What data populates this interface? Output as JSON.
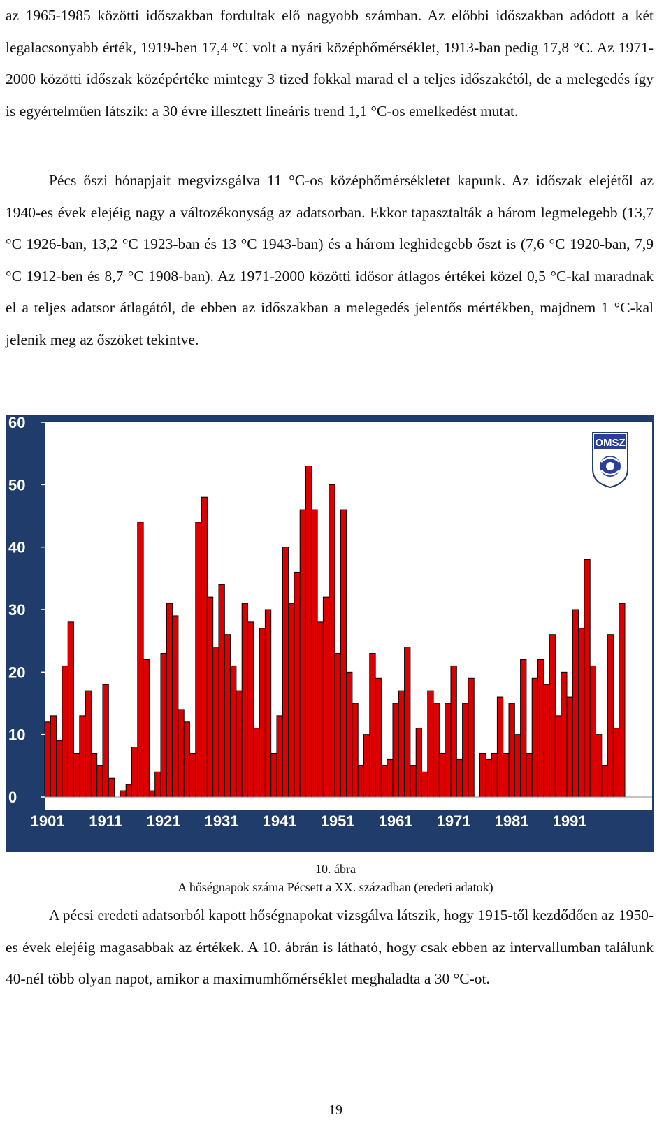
{
  "paragraphs": {
    "p1": "az 1965-1985 közötti időszakban fordultak elő nagyobb számban. Az előbbi időszakban adódott a két legalacsonyabb érték, 1919-ben 17,4 °C volt a nyári középhőmérséklet, 1913-ban pedig 17,8 °C. Az 1971-2000 közötti időszak középértéke mintegy 3 tized fokkal marad el a teljes időszakétól, de a melegedés így is egyértelműen látszik: a 30 évre illesztett lineáris trend 1,1 °C-os emelkedést mutat.",
    "p2": "Pécs őszi hónapjait megvizsgálva 11 °C-os középhőmérsékletet kapunk. Az időszak elejétől az 1940-es évek elejéig nagy a változékonyság az adatsorban. Ekkor tapasztalták a három legmelegebb (13,7 °C 1926-ban, 13,2 °C 1923-ban és 13 °C 1943-ban) és a három leghidegebb őszt is (7,6 °C 1920-ban, 7,9 °C 1912-ben és 8,7 °C 1908-ban). Az 1971-2000 közötti idősor átlagos értékei közel 0,5 °C-kal maradnak el a teljes adatsor átlagától, de ebben az időszakban a melegedés jelentős mértékben, majdnem 1 °C-kal jelenik meg az őszöket tekintve.",
    "p3": "A pécsi eredeti adatsorból kapott hőségnapokat vizsgálva látszik, hogy 1915-től kezdődően az 1950-es évek elejéig magasabbak az értékek. A 10. ábrán is látható, hogy csak ebben az intervallumban találunk 40-nél több olyan napot, amikor a maximumhőmérséklet meghaladta a 30 °C-ot."
  },
  "logo_text": "OMSZ",
  "caption": {
    "number": "10. ábra",
    "title": "A hőségnapok száma Pécsett a XX. században (eredeti adatok)"
  },
  "page_number": "19",
  "colors": {
    "background": "#1f3c6b",
    "plot_area": "#ffffff",
    "bar_fill": "#dd0000",
    "bar_stroke": "#000000"
  },
  "chart_data": {
    "type": "bar",
    "start_year": 1901,
    "end_year": 2000,
    "ylim": [
      0,
      60
    ],
    "y_ticks": [
      "0",
      "10",
      "20",
      "30",
      "40",
      "50",
      "60"
    ],
    "x_tick_labels": [
      "1901",
      "1911",
      "1921",
      "1931",
      "1941",
      "1951",
      "1961",
      "1971",
      "1981",
      "1991"
    ],
    "grid": false,
    "values": [
      12,
      13,
      9,
      21,
      28,
      7,
      13,
      17,
      7,
      5,
      18,
      3,
      null,
      1,
      2,
      8,
      44,
      22,
      1,
      4,
      23,
      31,
      29,
      14,
      12,
      7,
      44,
      48,
      32,
      24,
      34,
      26,
      21,
      17,
      31,
      28,
      11,
      27,
      30,
      7,
      13,
      40,
      31,
      36,
      46,
      53,
      46,
      28,
      32,
      50,
      23,
      46,
      20,
      15,
      5,
      10,
      23,
      19,
      5,
      6,
      15,
      17,
      24,
      5,
      11,
      4,
      17,
      15,
      7,
      15,
      21,
      6,
      15,
      19,
      null,
      7,
      6,
      7,
      16,
      7,
      15,
      10,
      22,
      7,
      19,
      22,
      18,
      26,
      13,
      20,
      16,
      30,
      27,
      38,
      21,
      10,
      5,
      26,
      11,
      31
    ]
  }
}
